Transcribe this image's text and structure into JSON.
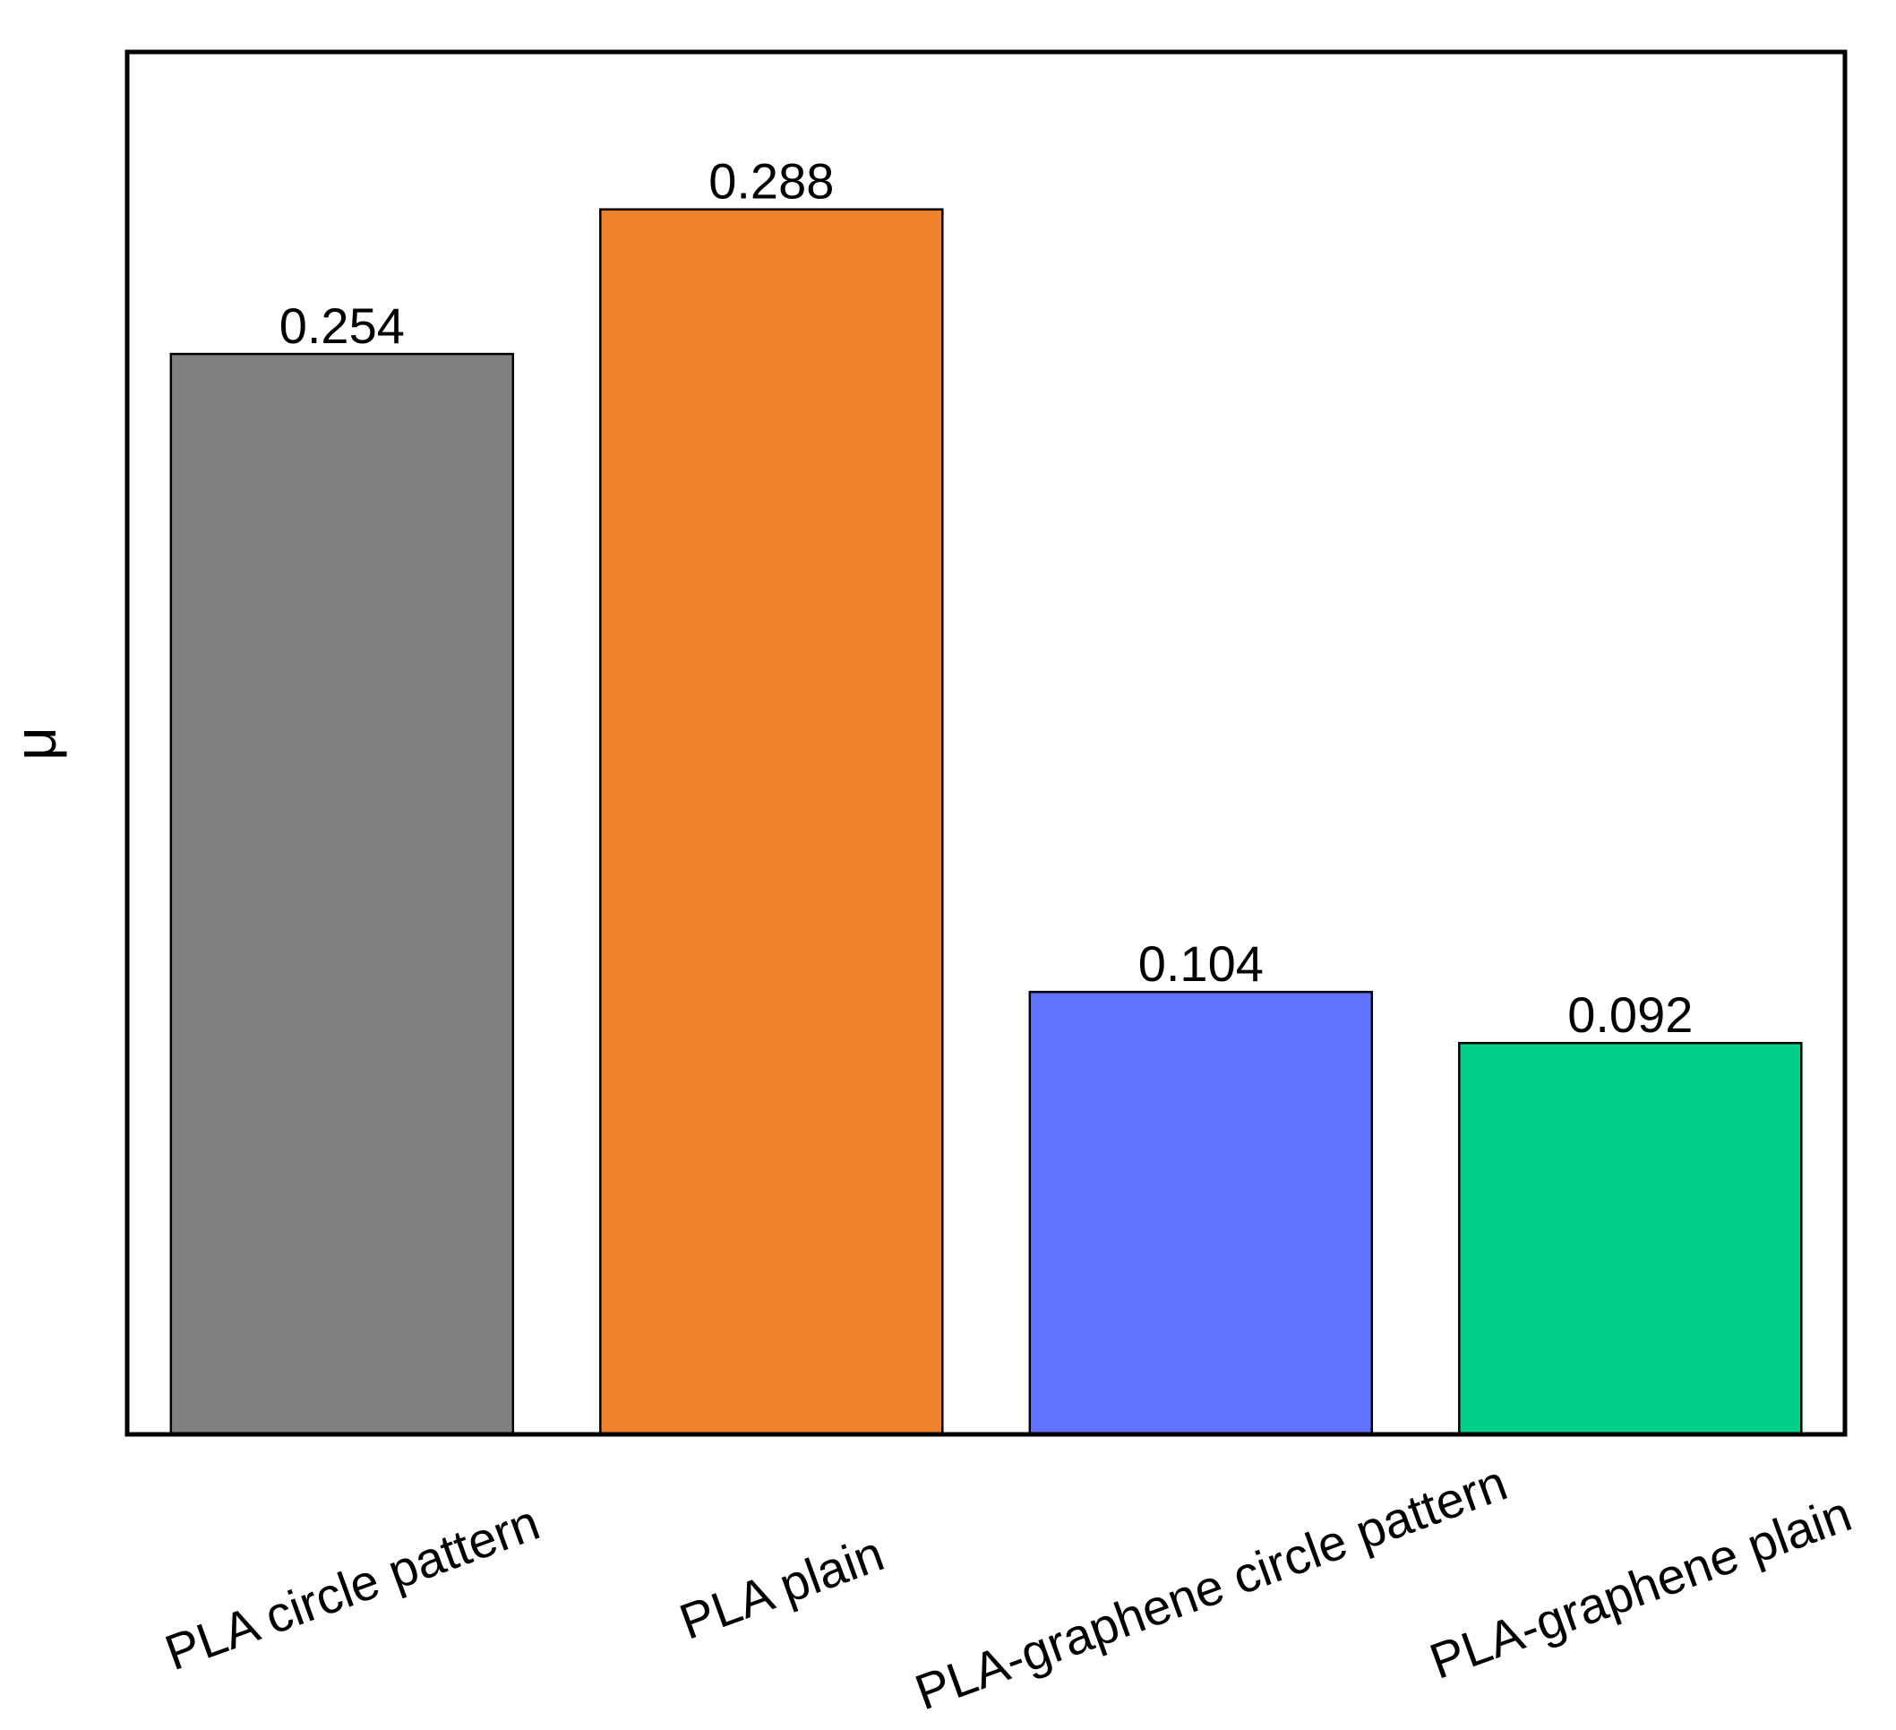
{
  "chart_data": {
    "type": "bar",
    "categories": [
      "PLA circle pattern",
      "PLA plain",
      "PLA-graphene circle pattern",
      "PLA-graphene plain"
    ],
    "values": [
      0.254,
      0.288,
      0.104,
      0.092
    ],
    "value_labels": [
      "0.254",
      "0.288",
      "0.104",
      "0.092"
    ],
    "colors": [
      "#808080",
      "#ef832b",
      "#5f73ff",
      "#00cf8c"
    ],
    "title": "",
    "xlabel": "",
    "ylabel": "μ",
    "ylim": [
      0,
      0.325
    ],
    "grid": false,
    "legend": "none"
  }
}
